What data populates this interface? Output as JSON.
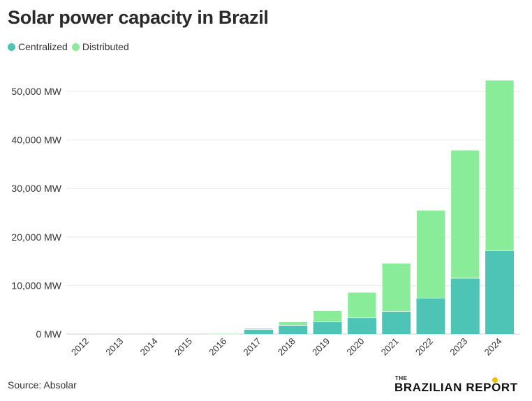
{
  "title": "Solar power capacity in Brazil",
  "source": "Source: Absolar",
  "logo": {
    "small": "THE",
    "name": "BRAZILIAN REPORT"
  },
  "chart_data": {
    "type": "bar",
    "stacked": true,
    "categories": [
      "2012",
      "2013",
      "2014",
      "2015",
      "2016",
      "2017",
      "2018",
      "2019",
      "2020",
      "2021",
      "2022",
      "2023",
      "2024"
    ],
    "series": [
      {
        "name": "Centralized",
        "color": "#4dc4b6",
        "values": [
          0,
          0,
          0,
          0,
          25,
          950,
          1800,
          2500,
          3350,
          4650,
          7400,
          11500,
          17200
        ]
      },
      {
        "name": "Distributed",
        "color": "#89ec98",
        "values": [
          5,
          10,
          20,
          25,
          190,
          250,
          700,
          2300,
          5250,
          9950,
          18100,
          26400,
          35100
        ]
      }
    ],
    "yticks": [
      "0 MW",
      "10,000 MW",
      "20,000 MW",
      "30,000 MW",
      "40,000 MW",
      "50,000 MW"
    ],
    "ylim": [
      0,
      50000
    ],
    "grid": true,
    "legend_position": "top-left"
  }
}
